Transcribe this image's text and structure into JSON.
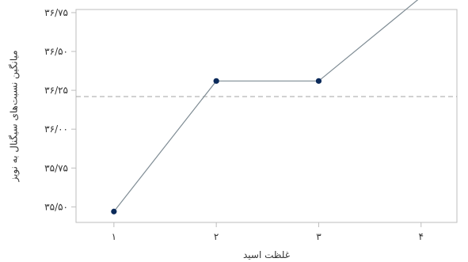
{
  "chart_data": {
    "type": "line",
    "title": "",
    "xlabel": "غلظت اسید",
    "ylabel": "میانگین نسبت‌های سیگنال به نویز",
    "x": [
      1,
      2,
      3,
      4
    ],
    "x_tick_labels": [
      "۱",
      "۲",
      "۳",
      "۴"
    ],
    "series": [
      {
        "values": [
          35.47,
          36.31,
          36.31,
          36.85
        ]
      }
    ],
    "reference_line": {
      "value": 36.21,
      "style": "dashed"
    },
    "ylim": [
      35.4,
      36.77
    ],
    "y_ticks": [
      35.5,
      35.75,
      36.0,
      36.25,
      36.5,
      36.75
    ],
    "y_tick_labels": [
      "۳۵/۵۰",
      "۳۵/۷۵",
      "۳۶/۰۰",
      "۳۶/۲۵",
      "۳۶/۵۰",
      "۳۶/۷۵"
    ],
    "grid": false,
    "legend": "none",
    "colors": {
      "line": "#7f8c94",
      "marker": "#0b2a5a",
      "reference": "#a3a3a3",
      "frame": "#bdbdbd",
      "text": "#333333"
    }
  }
}
